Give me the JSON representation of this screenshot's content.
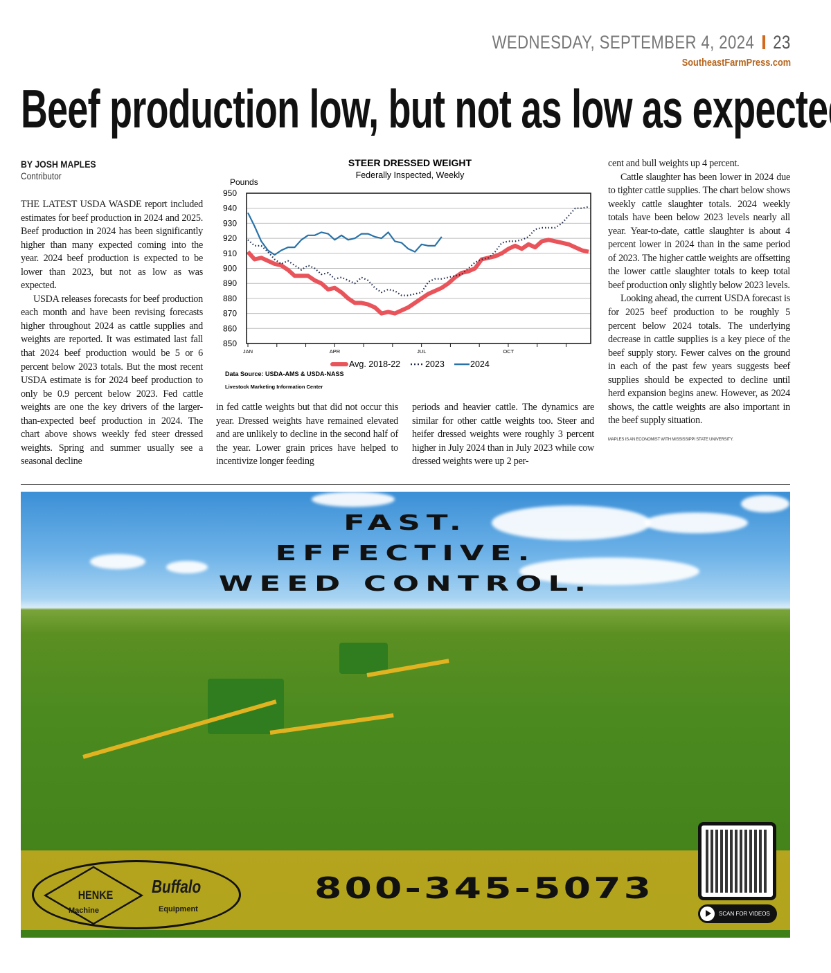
{
  "header": {
    "date": "WEDNESDAY, SEPTEMBER 4, 2024",
    "page_number": "23",
    "site": "SoutheastFarmPress.com",
    "accent_color": "#d2691e"
  },
  "article": {
    "headline": "Beef production low, but not as low as expected",
    "byline": "BY JOSH MAPLES",
    "role": "Contributor",
    "col1": [
      "THE LATEST USDA WASDE report included estimates for beef production in 2024 and 2025. Beef production in 2024 has been significantly higher than many expected coming into the year. 2024 beef production is expected to be lower than 2023, but not as low as was expected.",
      "USDA releases forecasts for beef production each month and have been revising forecasts higher throughout 2024 as cattle supplies and weights are reported. It was estimated last fall that 2024 beef production would be 5 or 6 percent below 2023 totals. But the most recent USDA estimate is for 2024 beef production to only be 0.9 percent below 2023. Fed cattle weights are one the key drivers of the larger-than-expected beef production in 2024. The chart above shows weekly fed steer dressed weights. Spring and summer usually see a seasonal decline"
    ],
    "col2": "in fed cattle weights but that did not occur this year. Dressed weights have remained elevated and are unlikely to decline in the second half of the year. Lower grain prices have helped to incentivize longer feeding",
    "col3": "periods and heavier cattle. The dynamics are similar for other cattle weights too. Steer and heifer dressed weights were roughly 3 percent higher in July 2024 than in July 2023 while cow dressed weights were up 2 per-",
    "col4": [
      "cent and bull weights up 4 percent.",
      "Cattle slaughter has been lower in 2024 due to tighter cattle supplies. The chart below shows weekly cattle slaughter totals. 2024 weekly totals have been below 2023 levels nearly all year. Year-to-date, cattle slaughter is about 4 percent lower in 2024 than in the same period of 2023. The higher cattle weights are offsetting the lower cattle slaughter totals to keep total beef production only slightly below 2023 levels.",
      "Looking ahead, the current USDA forecast is for 2025 beef production to be roughly 5 percent below 2024 totals. The underlying decrease in cattle supplies is a key piece of the beef supply story. Fewer calves on the ground in each of the past few years suggests beef supplies should be expected to decline until herd expansion begins anew. However, as 2024 shows, the cattle weights are also important in the beef supply situation."
    ],
    "credit": "MAPLES IS AN ECONOMIST WITH MISSISSIPPI STATE UNIVERSITY."
  },
  "chart_data": {
    "type": "line",
    "title": "STEER DRESSED WEIGHT",
    "subtitle": "Federally Inspected, Weekly",
    "ylabel": "Pounds",
    "ylim": [
      850,
      950
    ],
    "yticks": [
      950,
      940,
      930,
      920,
      910,
      900,
      890,
      880,
      870,
      860,
      850
    ],
    "x_tick_labels": [
      {
        "label": "JAN",
        "week": 1
      },
      {
        "label": "APR",
        "week": 14
      },
      {
        "label": "JUL",
        "week": 27
      },
      {
        "label": "OCT",
        "week": 40
      }
    ],
    "xlim": [
      1,
      52
    ],
    "grid": true,
    "legend_position": "bottom",
    "source": "Data Source:  USDA-AMS & USDA-NASS",
    "producer": "Livestock Marketing Information Center",
    "series": [
      {
        "name": "Avg. 2018-22",
        "color": "#e8545a",
        "style": "thick",
        "values": [
          911,
          906,
          907,
          905,
          903,
          902,
          899,
          895,
          895,
          895,
          892,
          890,
          886,
          887,
          884,
          880,
          877,
          877,
          876,
          874,
          870,
          871,
          870,
          872,
          874,
          877,
          880,
          883,
          885,
          887,
          890,
          894,
          897,
          898,
          900,
          906,
          907,
          908,
          910,
          913,
          915,
          913,
          916,
          914,
          918,
          919,
          918,
          917,
          916,
          914,
          912,
          911
        ]
      },
      {
        "name": "2023",
        "color": "#1f2a4a",
        "style": "dotted",
        "values": [
          919,
          915,
          915,
          911,
          906,
          903,
          905,
          902,
          899,
          902,
          900,
          896,
          897,
          893,
          894,
          892,
          890,
          894,
          892,
          887,
          884,
          886,
          885,
          882,
          882,
          883,
          884,
          891,
          893,
          893,
          894,
          895,
          896,
          900,
          904,
          906,
          907,
          911,
          917,
          918,
          918,
          919,
          921,
          926,
          927,
          927,
          927,
          930,
          935,
          940,
          940,
          941
        ]
      },
      {
        "name": "2024",
        "color": "#2872a8",
        "style": "solid",
        "values": [
          937,
          928,
          918,
          912,
          909,
          912,
          914,
          914,
          919,
          922,
          922,
          924,
          923,
          919,
          922,
          919,
          920,
          923,
          923,
          921,
          920,
          924,
          918,
          917,
          913,
          911,
          916,
          915,
          915,
          921
        ]
      }
    ]
  },
  "ad": {
    "headline": [
      "FAST.",
      "EFFECTIVE.",
      "WEED CONTROL."
    ],
    "brand1": "HENKE",
    "brand1_sub": "Machine",
    "brand2": "Buffalo",
    "brand2_sub": "Equipment",
    "phone": "800-345-5073",
    "qr_label": "SCAN FOR VIDEOS"
  }
}
